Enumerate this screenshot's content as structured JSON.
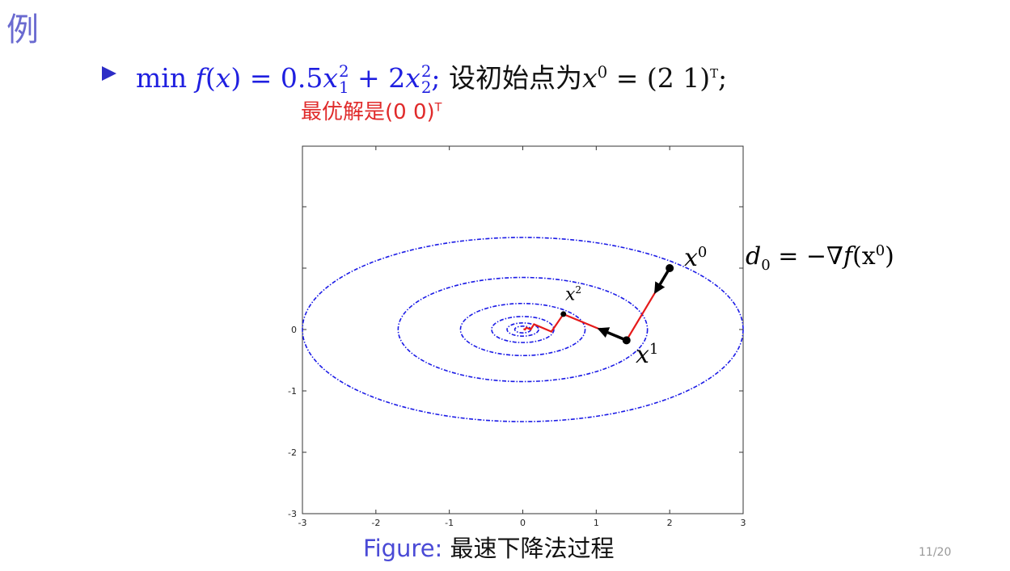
{
  "slide": {
    "heading": "例",
    "line1": {
      "min": "min",
      "f": "f",
      "x": "x",
      "eq": " = ",
      "c1": "0.5",
      "x1": "x",
      "s1": "1",
      "p1": "2",
      "plus": " + ",
      "c2": "2",
      "x2": "x",
      "s2": "2",
      "p2": "2",
      "semicolon": ";",
      "setup": " 设初始点为",
      "x0": "x",
      "x0sup": "0",
      "vec": " = (2 1)",
      "T": "T",
      "end": ";"
    },
    "red_note": {
      "text": "最优解是(0  0)",
      "T": "T"
    },
    "annotation_d0": {
      "d": "d",
      "sub": "0",
      "rest": " = −∇",
      "f": "f",
      "arg": "(x",
      "sup": "0",
      "close": ")"
    },
    "caption": {
      "label": "Figure:",
      "text": " 最速下降法过程"
    },
    "page_number": "11/20"
  },
  "chart_data": {
    "type": "line",
    "xlim": [
      -3,
      3
    ],
    "ylim": [
      -3,
      1.5
    ],
    "x_ticks": [
      "-3",
      "-2",
      "-1",
      "0",
      "1",
      "2",
      "3"
    ],
    "y_ticks": [
      "-3",
      "-2",
      "-1",
      "0"
    ],
    "contour_levels": [
      0.006,
      0.023,
      0.09,
      0.36,
      1.44,
      4.5
    ],
    "iterates": [
      [
        2.0,
        1.0
      ],
      [
        1.412,
        -0.176
      ],
      [
        0.553,
        0.251
      ],
      [
        0.39,
        -0.035
      ],
      [
        0.153,
        0.086
      ],
      [
        0.107,
        0.0
      ],
      [
        0.05,
        0.03
      ],
      [
        0.03,
        0.0
      ],
      [
        0.01,
        0.01
      ]
    ],
    "point_labels": [
      {
        "text": "x",
        "sup": "0",
        "at": 0
      },
      {
        "text": "x",
        "sup": "1",
        "at": 1
      },
      {
        "text": "x",
        "sup": "2",
        "at": 2
      }
    ],
    "colors": {
      "contour": "#1a1ae6",
      "path": "#e61a1a",
      "arrow": "#000000"
    }
  }
}
